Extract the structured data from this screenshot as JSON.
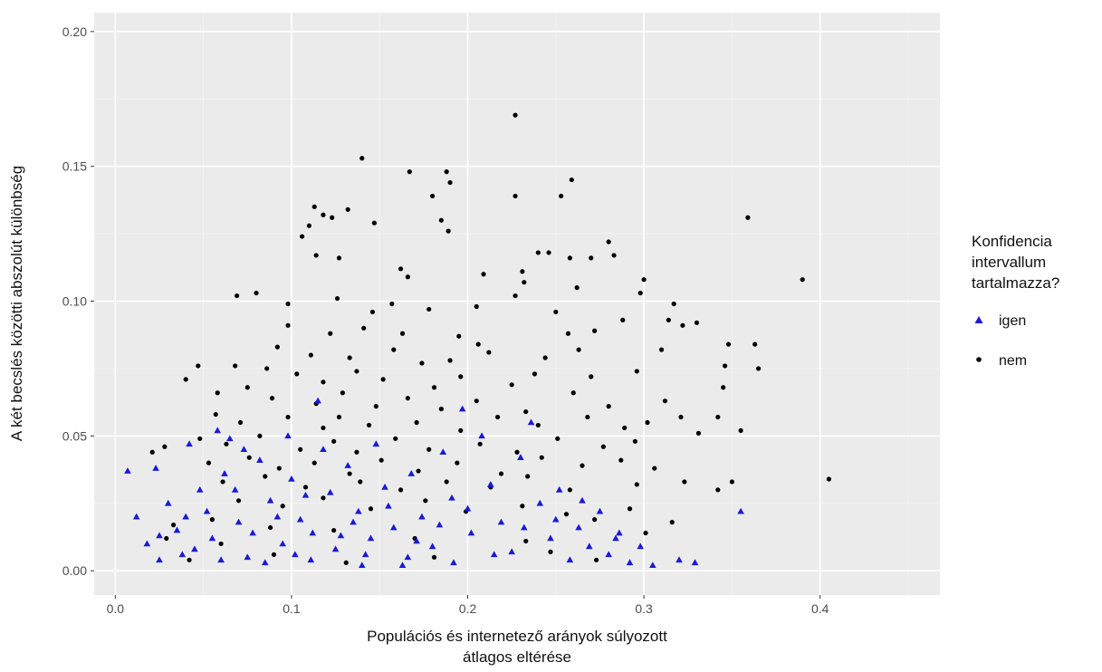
{
  "chart_data": {
    "type": "scatter",
    "title": "",
    "xlabel": [
      "Populációs és internetező arányok súlyozott",
      "átlagos eltérése"
    ],
    "ylabel": "A két becslés közötti abszolút különbség",
    "xlim": [
      -0.012,
      0.468
    ],
    "ylim": [
      -0.009,
      0.207
    ],
    "x_ticks": [
      0.0,
      0.1,
      0.2,
      0.3,
      0.4
    ],
    "x_tick_labels": [
      "0.0",
      "0.1",
      "0.2",
      "0.3",
      "0.4"
    ],
    "y_ticks": [
      0.0,
      0.05,
      0.1,
      0.15,
      0.2
    ],
    "y_tick_labels": [
      "0.00",
      "0.05",
      "0.10",
      "0.15",
      "0.20"
    ],
    "grid": true,
    "legend": {
      "title": [
        "Konfidencia",
        "intervallum",
        "tartalmazza?"
      ],
      "placement": "right",
      "entries": [
        {
          "label": "igen",
          "shape": "triangle",
          "color": "#1a1ad6"
        },
        {
          "label": "nem",
          "shape": "circle",
          "color": "#000000"
        }
      ]
    },
    "series": [
      {
        "name": "nem",
        "shape": "circle",
        "color": "#000000",
        "points": [
          [
            0.227,
            0.169
          ],
          [
            0.14,
            0.153
          ],
          [
            0.167,
            0.148
          ],
          [
            0.188,
            0.148
          ],
          [
            0.19,
            0.144
          ],
          [
            0.259,
            0.145
          ],
          [
            0.227,
            0.139
          ],
          [
            0.253,
            0.139
          ],
          [
            0.18,
            0.139
          ],
          [
            0.113,
            0.135
          ],
          [
            0.132,
            0.134
          ],
          [
            0.118,
            0.132
          ],
          [
            0.123,
            0.131
          ],
          [
            0.11,
            0.128
          ],
          [
            0.147,
            0.129
          ],
          [
            0.185,
            0.13
          ],
          [
            0.359,
            0.131
          ],
          [
            0.106,
            0.124
          ],
          [
            0.189,
            0.126
          ],
          [
            0.24,
            0.118
          ],
          [
            0.28,
            0.122
          ],
          [
            0.246,
            0.118
          ],
          [
            0.114,
            0.117
          ],
          [
            0.127,
            0.116
          ],
          [
            0.162,
            0.112
          ],
          [
            0.166,
            0.109
          ],
          [
            0.209,
            0.11
          ],
          [
            0.231,
            0.111
          ],
          [
            0.258,
            0.116
          ],
          [
            0.27,
            0.116
          ],
          [
            0.283,
            0.117
          ],
          [
            0.232,
            0.107
          ],
          [
            0.262,
            0.105
          ],
          [
            0.3,
            0.108
          ],
          [
            0.39,
            0.108
          ],
          [
            0.069,
            0.102
          ],
          [
            0.08,
            0.103
          ],
          [
            0.098,
            0.099
          ],
          [
            0.126,
            0.101
          ],
          [
            0.146,
            0.096
          ],
          [
            0.157,
            0.099
          ],
          [
            0.178,
            0.097
          ],
          [
            0.205,
            0.098
          ],
          [
            0.227,
            0.102
          ],
          [
            0.25,
            0.096
          ],
          [
            0.298,
            0.103
          ],
          [
            0.317,
            0.099
          ],
          [
            0.33,
            0.092
          ],
          [
            0.098,
            0.091
          ],
          [
            0.122,
            0.088
          ],
          [
            0.141,
            0.09
          ],
          [
            0.163,
            0.088
          ],
          [
            0.195,
            0.087
          ],
          [
            0.206,
            0.084
          ],
          [
            0.257,
            0.088
          ],
          [
            0.272,
            0.089
          ],
          [
            0.288,
            0.093
          ],
          [
            0.314,
            0.093
          ],
          [
            0.322,
            0.091
          ],
          [
            0.363,
            0.084
          ],
          [
            0.092,
            0.083
          ],
          [
            0.111,
            0.08
          ],
          [
            0.133,
            0.079
          ],
          [
            0.158,
            0.082
          ],
          [
            0.174,
            0.077
          ],
          [
            0.19,
            0.078
          ],
          [
            0.212,
            0.081
          ],
          [
            0.244,
            0.079
          ],
          [
            0.263,
            0.082
          ],
          [
            0.31,
            0.082
          ],
          [
            0.348,
            0.084
          ],
          [
            0.047,
            0.076
          ],
          [
            0.068,
            0.076
          ],
          [
            0.086,
            0.075
          ],
          [
            0.103,
            0.073
          ],
          [
            0.118,
            0.07
          ],
          [
            0.137,
            0.074
          ],
          [
            0.152,
            0.071
          ],
          [
            0.181,
            0.068
          ],
          [
            0.196,
            0.072
          ],
          [
            0.225,
            0.069
          ],
          [
            0.238,
            0.073
          ],
          [
            0.27,
            0.072
          ],
          [
            0.296,
            0.074
          ],
          [
            0.346,
            0.076
          ],
          [
            0.365,
            0.075
          ],
          [
            0.04,
            0.071
          ],
          [
            0.058,
            0.066
          ],
          [
            0.075,
            0.068
          ],
          [
            0.089,
            0.064
          ],
          [
            0.114,
            0.062
          ],
          [
            0.129,
            0.066
          ],
          [
            0.148,
            0.061
          ],
          [
            0.166,
            0.064
          ],
          [
            0.185,
            0.06
          ],
          [
            0.205,
            0.063
          ],
          [
            0.233,
            0.059
          ],
          [
            0.26,
            0.066
          ],
          [
            0.28,
            0.061
          ],
          [
            0.312,
            0.063
          ],
          [
            0.345,
            0.068
          ],
          [
            0.057,
            0.058
          ],
          [
            0.071,
            0.055
          ],
          [
            0.098,
            0.057
          ],
          [
            0.118,
            0.053
          ],
          [
            0.127,
            0.057
          ],
          [
            0.144,
            0.054
          ],
          [
            0.171,
            0.055
          ],
          [
            0.196,
            0.052
          ],
          [
            0.217,
            0.057
          ],
          [
            0.24,
            0.054
          ],
          [
            0.268,
            0.057
          ],
          [
            0.289,
            0.053
          ],
          [
            0.302,
            0.055
          ],
          [
            0.321,
            0.057
          ],
          [
            0.342,
            0.057
          ],
          [
            0.048,
            0.049
          ],
          [
            0.063,
            0.047
          ],
          [
            0.082,
            0.05
          ],
          [
            0.105,
            0.045
          ],
          [
            0.124,
            0.048
          ],
          [
            0.137,
            0.044
          ],
          [
            0.159,
            0.049
          ],
          [
            0.178,
            0.045
          ],
          [
            0.207,
            0.047
          ],
          [
            0.228,
            0.044
          ],
          [
            0.251,
            0.049
          ],
          [
            0.277,
            0.046
          ],
          [
            0.295,
            0.048
          ],
          [
            0.331,
            0.051
          ],
          [
            0.355,
            0.052
          ],
          [
            0.021,
            0.044
          ],
          [
            0.028,
            0.046
          ],
          [
            0.053,
            0.04
          ],
          [
            0.076,
            0.042
          ],
          [
            0.093,
            0.038
          ],
          [
            0.113,
            0.04
          ],
          [
            0.133,
            0.036
          ],
          [
            0.151,
            0.041
          ],
          [
            0.172,
            0.037
          ],
          [
            0.194,
            0.04
          ],
          [
            0.219,
            0.036
          ],
          [
            0.242,
            0.042
          ],
          [
            0.265,
            0.039
          ],
          [
            0.287,
            0.041
          ],
          [
            0.306,
            0.038
          ],
          [
            0.061,
            0.033
          ],
          [
            0.085,
            0.035
          ],
          [
            0.108,
            0.031
          ],
          [
            0.139,
            0.033
          ],
          [
            0.162,
            0.03
          ],
          [
            0.188,
            0.033
          ],
          [
            0.213,
            0.031
          ],
          [
            0.234,
            0.035
          ],
          [
            0.258,
            0.03
          ],
          [
            0.296,
            0.032
          ],
          [
            0.323,
            0.033
          ],
          [
            0.35,
            0.033
          ],
          [
            0.405,
            0.034
          ],
          [
            0.342,
            0.03
          ],
          [
            0.07,
            0.026
          ],
          [
            0.095,
            0.024
          ],
          [
            0.118,
            0.027
          ],
          [
            0.145,
            0.023
          ],
          [
            0.176,
            0.026
          ],
          [
            0.199,
            0.022
          ],
          [
            0.231,
            0.024
          ],
          [
            0.256,
            0.021
          ],
          [
            0.292,
            0.023
          ],
          [
            0.055,
            0.019
          ],
          [
            0.033,
            0.017
          ],
          [
            0.088,
            0.016
          ],
          [
            0.124,
            0.015
          ],
          [
            0.272,
            0.019
          ],
          [
            0.316,
            0.018
          ],
          [
            0.029,
            0.012
          ],
          [
            0.06,
            0.01
          ],
          [
            0.17,
            0.012
          ],
          [
            0.233,
            0.011
          ],
          [
            0.301,
            0.014
          ],
          [
            0.042,
            0.004
          ],
          [
            0.09,
            0.006
          ],
          [
            0.131,
            0.003
          ],
          [
            0.181,
            0.005
          ],
          [
            0.247,
            0.007
          ],
          [
            0.273,
            0.004
          ]
        ]
      },
      {
        "name": "igen",
        "shape": "triangle",
        "color": "#1a1ad6",
        "points": [
          [
            0.007,
            0.037
          ],
          [
            0.023,
            0.038
          ],
          [
            0.012,
            0.02
          ],
          [
            0.03,
            0.025
          ],
          [
            0.018,
            0.01
          ],
          [
            0.025,
            0.004
          ],
          [
            0.035,
            0.015
          ],
          [
            0.042,
            0.047
          ],
          [
            0.058,
            0.052
          ],
          [
            0.065,
            0.049
          ],
          [
            0.04,
            0.02
          ],
          [
            0.048,
            0.03
          ],
          [
            0.055,
            0.012
          ],
          [
            0.062,
            0.036
          ],
          [
            0.07,
            0.018
          ],
          [
            0.075,
            0.005
          ],
          [
            0.082,
            0.041
          ],
          [
            0.088,
            0.026
          ],
          [
            0.095,
            0.01
          ],
          [
            0.1,
            0.034
          ],
          [
            0.105,
            0.019
          ],
          [
            0.111,
            0.004
          ],
          [
            0.115,
            0.063
          ],
          [
            0.118,
            0.045
          ],
          [
            0.122,
            0.029
          ],
          [
            0.128,
            0.013
          ],
          [
            0.132,
            0.039
          ],
          [
            0.138,
            0.022
          ],
          [
            0.142,
            0.006
          ],
          [
            0.148,
            0.047
          ],
          [
            0.153,
            0.031
          ],
          [
            0.158,
            0.016
          ],
          [
            0.163,
            0.002
          ],
          [
            0.168,
            0.036
          ],
          [
            0.174,
            0.02
          ],
          [
            0.18,
            0.009
          ],
          [
            0.186,
            0.044
          ],
          [
            0.191,
            0.027
          ],
          [
            0.197,
            0.06
          ],
          [
            0.202,
            0.014
          ],
          [
            0.208,
            0.05
          ],
          [
            0.213,
            0.032
          ],
          [
            0.219,
            0.018
          ],
          [
            0.225,
            0.007
          ],
          [
            0.23,
            0.042
          ],
          [
            0.236,
            0.055
          ],
          [
            0.241,
            0.025
          ],
          [
            0.247,
            0.012
          ],
          [
            0.252,
            0.03
          ],
          [
            0.258,
            0.004
          ],
          [
            0.263,
            0.016
          ],
          [
            0.269,
            0.009
          ],
          [
            0.275,
            0.022
          ],
          [
            0.28,
            0.006
          ],
          [
            0.286,
            0.014
          ],
          [
            0.292,
            0.003
          ],
          [
            0.298,
            0.009
          ],
          [
            0.305,
            0.002
          ],
          [
            0.32,
            0.004
          ],
          [
            0.329,
            0.003
          ],
          [
            0.355,
            0.022
          ],
          [
            0.045,
            0.008
          ],
          [
            0.052,
            0.022
          ],
          [
            0.068,
            0.03
          ],
          [
            0.078,
            0.014
          ],
          [
            0.092,
            0.02
          ],
          [
            0.108,
            0.028
          ],
          [
            0.125,
            0.008
          ],
          [
            0.135,
            0.018
          ],
          [
            0.155,
            0.024
          ],
          [
            0.171,
            0.011
          ],
          [
            0.184,
            0.017
          ],
          [
            0.2,
            0.023
          ],
          [
            0.215,
            0.006
          ],
          [
            0.232,
            0.016
          ],
          [
            0.25,
            0.019
          ],
          [
            0.265,
            0.026
          ],
          [
            0.284,
            0.012
          ],
          [
            0.06,
            0.004
          ],
          [
            0.085,
            0.003
          ],
          [
            0.102,
            0.006
          ],
          [
            0.14,
            0.002
          ],
          [
            0.166,
            0.005
          ],
          [
            0.192,
            0.003
          ],
          [
            0.025,
            0.013
          ],
          [
            0.038,
            0.006
          ],
          [
            0.073,
            0.045
          ],
          [
            0.098,
            0.05
          ],
          [
            0.112,
            0.014
          ],
          [
            0.145,
            0.012
          ]
        ]
      }
    ]
  }
}
